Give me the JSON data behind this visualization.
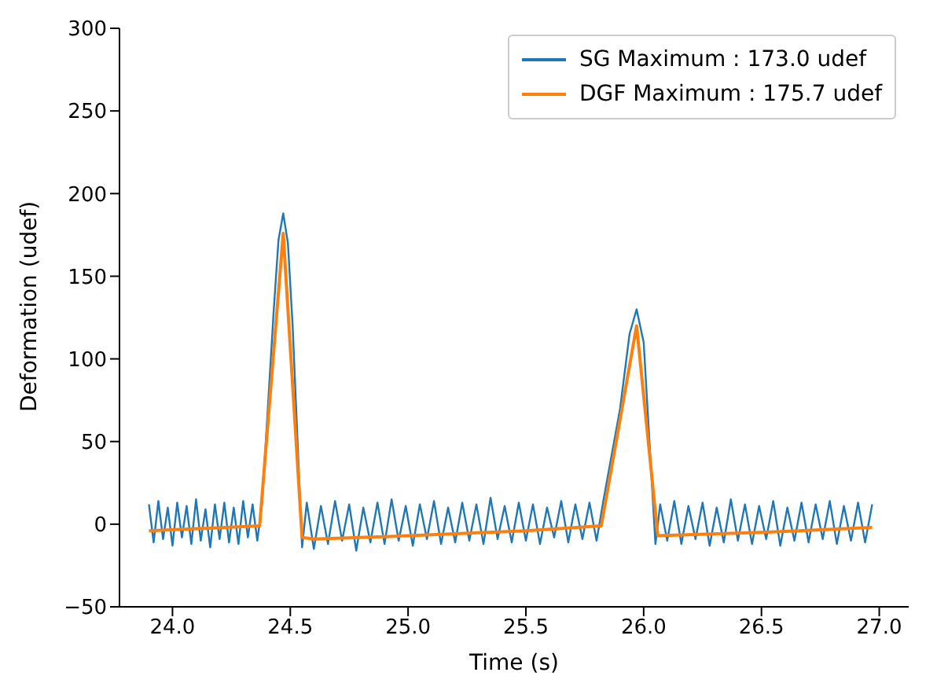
{
  "chart_data": {
    "type": "line",
    "xlabel": "Time (s)",
    "ylabel": "Deformation (udef)",
    "xlim": [
      23.775,
      27.125
    ],
    "xticks": [
      {
        "value": 24,
        "label": "24.0"
      },
      {
        "value": 24.5,
        "label": "24.5"
      },
      {
        "value": 25,
        "label": "25.0"
      },
      {
        "value": 25.5,
        "label": "25.5"
      },
      {
        "value": 26,
        "label": "26.0"
      },
      {
        "value": 26.5,
        "label": "26.5"
      },
      {
        "value": 27,
        "label": "27.0"
      }
    ],
    "ylim": [
      -50,
      300
    ],
    "yticks": [
      {
        "value": -50,
        "label": "−50"
      },
      0,
      50,
      100,
      150,
      200,
      250,
      300
    ],
    "grid": false,
    "legend": "top right",
    "marker": "none",
    "line_style": "solid",
    "series": [
      {
        "name": "SG Maximum : 173.0 udef",
        "color": "#1f77b4",
        "x": [
          23.9,
          23.92,
          23.94,
          23.96,
          23.98,
          24,
          24.02,
          24.04,
          24.06,
          24.08,
          24.1,
          24.12,
          24.14,
          24.16,
          24.18,
          24.2,
          24.22,
          24.24,
          24.26,
          24.28,
          24.3,
          24.32,
          24.34,
          24.36,
          24.38,
          24.4,
          24.43,
          24.45,
          24.47,
          24.49,
          24.51,
          24.53,
          24.55,
          24.57,
          24.6,
          24.63,
          24.66,
          24.69,
          24.72,
          24.75,
          24.78,
          24.81,
          24.84,
          24.87,
          24.9,
          24.93,
          24.96,
          24.99,
          25.02,
          25.05,
          25.08,
          25.11,
          25.14,
          25.17,
          25.2,
          25.23,
          25.26,
          25.29,
          25.32,
          25.35,
          25.38,
          25.41,
          25.44,
          25.47,
          25.5,
          25.53,
          25.56,
          25.59,
          25.62,
          25.65,
          25.68,
          25.71,
          25.74,
          25.77,
          25.8,
          25.83,
          25.86,
          25.9,
          25.94,
          25.97,
          26,
          26.03,
          26.05,
          26.07,
          26.1,
          26.13,
          26.16,
          26.19,
          26.22,
          26.25,
          26.28,
          26.31,
          26.34,
          26.37,
          26.4,
          26.43,
          26.46,
          26.49,
          26.52,
          26.55,
          26.58,
          26.61,
          26.64,
          26.67,
          26.7,
          26.73,
          26.76,
          26.79,
          26.82,
          26.85,
          26.88,
          26.91,
          26.94,
          26.97
        ],
        "values": [
          12,
          -11,
          14,
          -9,
          10,
          -13,
          13,
          -8,
          11,
          -12,
          15,
          -10,
          9,
          -14,
          12,
          -9,
          13,
          -11,
          10,
          -12,
          14,
          -8,
          12,
          -10,
          12,
          null,
          130,
          172,
          188,
          170,
          120,
          null,
          -14,
          13,
          -15,
          11,
          -12,
          14,
          -10,
          12,
          -16,
          10,
          -11,
          13,
          -12,
          15,
          -10,
          11,
          -13,
          12,
          -9,
          14,
          -12,
          10,
          -11,
          13,
          -10,
          12,
          -12,
          16,
          -9,
          11,
          -11,
          13,
          -10,
          12,
          -12,
          10,
          -8,
          14,
          -11,
          12,
          -9,
          13,
          -10,
          15,
          null,
          70,
          115,
          130,
          110,
          null,
          -12,
          12,
          -10,
          14,
          -12,
          11,
          -9,
          13,
          -13,
          10,
          -11,
          15,
          -10,
          12,
          -12,
          11,
          -9,
          14,
          -13,
          10,
          -10,
          13,
          -11,
          12,
          -9,
          14,
          -12,
          11,
          -10,
          13,
          -11,
          12
        ]
      },
      {
        "name": "DGF Maximum : 175.7 udef",
        "color": "#ff7f0e",
        "x": [
          23.9,
          24.37,
          24.47,
          24.55,
          24.6,
          25,
          25.5,
          25.82,
          25.97,
          26.06,
          26.5,
          26.97
        ],
        "values": [
          -4,
          -1,
          176,
          -8,
          -9,
          -7,
          -4,
          -1,
          120,
          -7,
          -5,
          -2
        ]
      }
    ]
  }
}
